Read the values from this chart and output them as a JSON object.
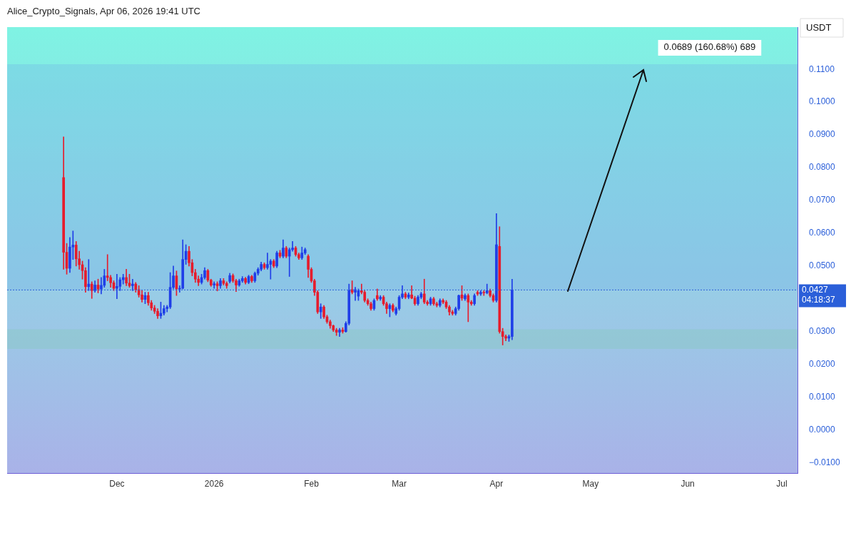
{
  "chart_data": {
    "type": "candlestick",
    "ylabel": "USDT",
    "annotations": [
      "Alice_Crypto_Signals, Apr 06, 2026 19:41 UTC",
      {
        "text": "0.0689 (160.68%) 689",
        "x": "2026-06-08",
        "y": 0.1116
      }
    ],
    "x": [
      "2025-11-14",
      "2025-11-15",
      "2025-11-16",
      "2025-11-17",
      "2025-11-18",
      "2025-11-19",
      "2025-11-20",
      "2025-11-21",
      "2025-11-22",
      "2025-11-23",
      "2025-11-24",
      "2025-11-25",
      "2025-11-26",
      "2025-11-27",
      "2025-11-28",
      "2025-11-29",
      "2025-11-30",
      "2025-12-01",
      "2025-12-02",
      "2025-12-03",
      "2025-12-04",
      "2025-12-05",
      "2025-12-06",
      "2025-12-07",
      "2025-12-08",
      "2025-12-09",
      "2025-12-10",
      "2025-12-11",
      "2025-12-12",
      "2025-12-13",
      "2025-12-14",
      "2025-12-15",
      "2025-12-16",
      "2025-12-17",
      "2025-12-18",
      "2025-12-19",
      "2025-12-20",
      "2025-12-21",
      "2025-12-22",
      "2025-12-23",
      "2025-12-24",
      "2025-12-25",
      "2025-12-26",
      "2025-12-27",
      "2025-12-28",
      "2025-12-29",
      "2025-12-30",
      "2025-12-31",
      "2026-01-01",
      "2026-01-02",
      "2026-01-03",
      "2026-01-04",
      "2026-01-05",
      "2026-01-06",
      "2026-01-07",
      "2026-01-08",
      "2026-01-09",
      "2026-01-10",
      "2026-01-11",
      "2026-01-12",
      "2026-01-13",
      "2026-01-14",
      "2026-01-15",
      "2026-01-16",
      "2026-01-17",
      "2026-01-18",
      "2026-01-19",
      "2026-01-20",
      "2026-01-21",
      "2026-01-22",
      "2026-01-23",
      "2026-01-24",
      "2026-01-25",
      "2026-01-26",
      "2026-01-27",
      "2026-01-28",
      "2026-01-29",
      "2026-01-30",
      "2026-01-31",
      "2026-02-01",
      "2026-02-02",
      "2026-02-03",
      "2026-02-04",
      "2026-02-05",
      "2026-02-06",
      "2026-02-07",
      "2026-02-08",
      "2026-02-09",
      "2026-02-10",
      "2026-02-11",
      "2026-02-12",
      "2026-02-13",
      "2026-02-14",
      "2026-02-15",
      "2026-02-16",
      "2026-02-17",
      "2026-02-18",
      "2026-02-19",
      "2026-02-20",
      "2026-02-21",
      "2026-02-22",
      "2026-02-23",
      "2026-02-24",
      "2026-02-25",
      "2026-02-26",
      "2026-02-27",
      "2026-02-28",
      "2026-03-01",
      "2026-03-02",
      "2026-03-03",
      "2026-03-04",
      "2026-03-05",
      "2026-03-06",
      "2026-03-07",
      "2026-03-08",
      "2026-03-09",
      "2026-03-10",
      "2026-03-11",
      "2026-03-12",
      "2026-03-13",
      "2026-03-14",
      "2026-03-15",
      "2026-03-16",
      "2026-03-17",
      "2026-03-18",
      "2026-03-19",
      "2026-03-20",
      "2026-03-21",
      "2026-03-22",
      "2026-03-23",
      "2026-03-24",
      "2026-03-25",
      "2026-03-26",
      "2026-03-27",
      "2026-03-28",
      "2026-03-29",
      "2026-03-30",
      "2026-03-31",
      "2026-04-01",
      "2026-04-02",
      "2026-04-03",
      "2026-04-04",
      "2026-04-05",
      "2026-04-06"
    ],
    "ohlc": [
      [
        0.077,
        0.0894,
        0.049,
        0.0542
      ],
      [
        0.0542,
        0.0569,
        0.0475,
        0.0493
      ],
      [
        0.0493,
        0.0587,
        0.048,
        0.0558
      ],
      [
        0.0558,
        0.0607,
        0.052,
        0.0564
      ],
      [
        0.0564,
        0.0575,
        0.05,
        0.0522
      ],
      [
        0.0522,
        0.0545,
        0.049,
        0.0504
      ],
      [
        0.0504,
        0.0515,
        0.046,
        0.0486
      ],
      [
        0.0486,
        0.0495,
        0.042,
        0.0437
      ],
      [
        0.0437,
        0.052,
        0.0425,
        0.0445
      ],
      [
        0.0445,
        0.0452,
        0.0401,
        0.0425
      ],
      [
        0.0425,
        0.0455,
        0.042,
        0.0442
      ],
      [
        0.0442,
        0.046,
        0.0418,
        0.043
      ],
      [
        0.043,
        0.0465,
        0.0415,
        0.0441
      ],
      [
        0.0441,
        0.049,
        0.0435,
        0.047
      ],
      [
        0.047,
        0.0535,
        0.0455,
        0.0465
      ],
      [
        0.0465,
        0.0472,
        0.0435,
        0.0449
      ],
      [
        0.0449,
        0.0455,
        0.0425,
        0.0432
      ],
      [
        0.0432,
        0.0475,
        0.04,
        0.0438
      ],
      [
        0.0438,
        0.0465,
        0.0425,
        0.0458
      ],
      [
        0.0458,
        0.0475,
        0.0445,
        0.0465
      ],
      [
        0.0465,
        0.049,
        0.044,
        0.0448
      ],
      [
        0.0448,
        0.0475,
        0.0435,
        0.044
      ],
      [
        0.044,
        0.046,
        0.0425,
        0.0445
      ],
      [
        0.0445,
        0.045,
        0.042,
        0.0428
      ],
      [
        0.0428,
        0.044,
        0.0405,
        0.0412
      ],
      [
        0.0412,
        0.0425,
        0.039,
        0.0398
      ],
      [
        0.0398,
        0.042,
        0.0385,
        0.041
      ],
      [
        0.041,
        0.042,
        0.038,
        0.0388
      ],
      [
        0.0388,
        0.0395,
        0.0365,
        0.0372
      ],
      [
        0.0372,
        0.038,
        0.0355,
        0.0362
      ],
      [
        0.0362,
        0.037,
        0.034,
        0.0348
      ],
      [
        0.0348,
        0.039,
        0.034,
        0.0356
      ],
      [
        0.0356,
        0.038,
        0.035,
        0.037
      ],
      [
        0.037,
        0.038,
        0.036,
        0.0375
      ],
      [
        0.0375,
        0.048,
        0.037,
        0.0435
      ],
      [
        0.0435,
        0.05,
        0.043,
        0.047
      ],
      [
        0.047,
        0.0485,
        0.041,
        0.043
      ],
      [
        0.043,
        0.044,
        0.042,
        0.0432
      ],
      [
        0.0432,
        0.058,
        0.043,
        0.052
      ],
      [
        0.052,
        0.0565,
        0.0505,
        0.0545
      ],
      [
        0.0545,
        0.056,
        0.05,
        0.051
      ],
      [
        0.051,
        0.052,
        0.047,
        0.048
      ],
      [
        0.048,
        0.049,
        0.045,
        0.046
      ],
      [
        0.046,
        0.047,
        0.044,
        0.045
      ],
      [
        0.045,
        0.0475,
        0.0445,
        0.0465
      ],
      [
        0.0465,
        0.0495,
        0.046,
        0.0486
      ],
      [
        0.0486,
        0.049,
        0.0452,
        0.0457
      ],
      [
        0.0457,
        0.046,
        0.0438,
        0.0442
      ],
      [
        0.0442,
        0.0452,
        0.0432,
        0.0446
      ],
      [
        0.0446,
        0.0452,
        0.0424,
        0.044
      ],
      [
        0.044,
        0.0462,
        0.0432,
        0.0455
      ],
      [
        0.0455,
        0.0462,
        0.0442,
        0.0447
      ],
      [
        0.0447,
        0.0452,
        0.0432,
        0.044
      ],
      [
        0.0453,
        0.0478,
        0.0448,
        0.0471
      ],
      [
        0.0471,
        0.0476,
        0.045,
        0.0455
      ],
      [
        0.0455,
        0.046,
        0.0422,
        0.0442
      ],
      [
        0.0442,
        0.046,
        0.0438,
        0.0455
      ],
      [
        0.0455,
        0.0468,
        0.045,
        0.0462
      ],
      [
        0.0462,
        0.0466,
        0.0445,
        0.045
      ],
      [
        0.045,
        0.0472,
        0.0446,
        0.0468
      ],
      [
        0.0468,
        0.0472,
        0.045,
        0.0455
      ],
      [
        0.0455,
        0.0482,
        0.045,
        0.0478
      ],
      [
        0.0478,
        0.0495,
        0.0472,
        0.049
      ],
      [
        0.049,
        0.0512,
        0.0485,
        0.0505
      ],
      [
        0.0505,
        0.051,
        0.049,
        0.0495
      ],
      [
        0.0495,
        0.054,
        0.049,
        0.0505
      ],
      [
        0.0505,
        0.052,
        0.046,
        0.0515
      ],
      [
        0.0515,
        0.052,
        0.0495,
        0.05
      ],
      [
        0.05,
        0.0545,
        0.0495,
        0.054
      ],
      [
        0.054,
        0.0548,
        0.0525,
        0.053
      ],
      [
        0.053,
        0.058,
        0.0525,
        0.0555
      ],
      [
        0.0555,
        0.056,
        0.0525,
        0.053
      ],
      [
        0.053,
        0.0555,
        0.0468,
        0.055
      ],
      [
        0.055,
        0.0575,
        0.0545,
        0.0555
      ],
      [
        0.0555,
        0.056,
        0.053,
        0.0535
      ],
      [
        0.0535,
        0.054,
        0.052,
        0.0525
      ],
      [
        0.0525,
        0.0558,
        0.052,
        0.054
      ],
      [
        0.054,
        0.0555,
        0.0535,
        0.055
      ],
      [
        0.053,
        0.0535,
        0.0465,
        0.049
      ],
      [
        0.049,
        0.0495,
        0.045,
        0.0455
      ],
      [
        0.0455,
        0.046,
        0.041,
        0.042
      ],
      [
        0.042,
        0.0425,
        0.0355,
        0.036
      ],
      [
        0.036,
        0.0385,
        0.034,
        0.0375
      ],
      [
        0.0375,
        0.038,
        0.034,
        0.0345
      ],
      [
        0.0345,
        0.035,
        0.0325,
        0.033
      ],
      [
        0.033,
        0.0335,
        0.031,
        0.0318
      ],
      [
        0.0318,
        0.032,
        0.03,
        0.0305
      ],
      [
        0.0305,
        0.031,
        0.0288,
        0.0298
      ],
      [
        0.0298,
        0.031,
        0.0285,
        0.0305
      ],
      [
        0.0305,
        0.0312,
        0.0295,
        0.03
      ],
      [
        0.03,
        0.033,
        0.0298,
        0.0325
      ],
      [
        0.0325,
        0.0445,
        0.032,
        0.0425
      ],
      [
        0.0428,
        0.0455,
        0.0415,
        0.042
      ],
      [
        0.042,
        0.0435,
        0.0395,
        0.0428
      ],
      [
        0.0408,
        0.043,
        0.0395,
        0.0425
      ],
      [
        0.0425,
        0.0445,
        0.0415,
        0.042
      ],
      [
        0.042,
        0.0425,
        0.039,
        0.0395
      ],
      [
        0.0395,
        0.04,
        0.038,
        0.0385
      ],
      [
        0.0385,
        0.039,
        0.0365,
        0.037
      ],
      [
        0.037,
        0.04,
        0.0365,
        0.0395
      ],
      [
        0.041,
        0.043,
        0.0395,
        0.04
      ],
      [
        0.04,
        0.041,
        0.0395,
        0.0405
      ],
      [
        0.0405,
        0.041,
        0.038,
        0.0385
      ],
      [
        0.0385,
        0.039,
        0.0355,
        0.037
      ],
      [
        0.037,
        0.0385,
        0.0345,
        0.038
      ],
      [
        0.038,
        0.0385,
        0.036,
        0.0365
      ],
      [
        0.0355,
        0.0375,
        0.035,
        0.037
      ],
      [
        0.037,
        0.041,
        0.0365,
        0.0405
      ],
      [
        0.0405,
        0.044,
        0.04,
        0.0415
      ],
      [
        0.0415,
        0.042,
        0.04,
        0.0405
      ],
      [
        0.0405,
        0.0418,
        0.04,
        0.0412
      ],
      [
        0.0412,
        0.044,
        0.04,
        0.0402
      ],
      [
        0.0402,
        0.0408,
        0.038,
        0.0385
      ],
      [
        0.0385,
        0.041,
        0.038,
        0.0405
      ],
      [
        0.0405,
        0.042,
        0.04,
        0.0415
      ],
      [
        0.0415,
        0.046,
        0.0385,
        0.039
      ],
      [
        0.039,
        0.0395,
        0.038,
        0.0385
      ],
      [
        0.0385,
        0.0405,
        0.038,
        0.04
      ],
      [
        0.04,
        0.0405,
        0.038,
        0.0385
      ],
      [
        0.0385,
        0.039,
        0.0375,
        0.038
      ],
      [
        0.038,
        0.04,
        0.0375,
        0.0395
      ],
      [
        0.0395,
        0.04,
        0.0385,
        0.039
      ],
      [
        0.039,
        0.0395,
        0.037,
        0.0375
      ],
      [
        0.0375,
        0.038,
        0.035,
        0.036
      ],
      [
        0.036,
        0.0365,
        0.035,
        0.0355
      ],
      [
        0.0355,
        0.0375,
        0.035,
        0.037
      ],
      [
        0.037,
        0.0412,
        0.0365,
        0.041
      ],
      [
        0.0412,
        0.044,
        0.0395,
        0.0402
      ],
      [
        0.04,
        0.0415,
        0.0395,
        0.041
      ],
      [
        0.041,
        0.0415,
        0.033,
        0.039
      ],
      [
        0.039,
        0.0395,
        0.038,
        0.0385
      ],
      [
        0.0385,
        0.0415,
        0.038,
        0.041
      ],
      [
        0.042,
        0.0425,
        0.041,
        0.0415
      ],
      [
        0.0415,
        0.0425,
        0.041,
        0.042
      ],
      [
        0.042,
        0.0425,
        0.041,
        0.0418
      ],
      [
        0.0418,
        0.0445,
        0.0415,
        0.0425
      ],
      [
        0.0425,
        0.043,
        0.0405,
        0.041
      ],
      [
        0.041,
        0.0415,
        0.039,
        0.0395
      ],
      [
        0.0395,
        0.066,
        0.039,
        0.0565
      ],
      [
        0.056,
        0.062,
        0.0295,
        0.03
      ],
      [
        0.03,
        0.031,
        0.0259,
        0.0285
      ],
      [
        0.0285,
        0.029,
        0.0272,
        0.028
      ],
      [
        0.028,
        0.029,
        0.027,
        0.0285
      ],
      [
        0.0285,
        0.046,
        0.0275,
        0.0427
      ]
    ],
    "xlim": [
      "2025-10-27",
      "2026-07-06"
    ],
    "xticks": [
      {
        "value": "2025-12-01",
        "label": "Dec"
      },
      {
        "value": "2026-01-01",
        "label": "2026"
      },
      {
        "value": "2026-02-01",
        "label": "Feb"
      },
      {
        "value": "2026-03-01",
        "label": "Mar"
      },
      {
        "value": "2026-04-01",
        "label": "Apr"
      },
      {
        "value": "2026-05-01",
        "label": "May"
      },
      {
        "value": "2026-06-01",
        "label": "Jun"
      },
      {
        "value": "2026-07-01",
        "label": "Jul"
      }
    ],
    "ylim": [
      -0.0133,
      0.1229
    ],
    "yticks": [
      {
        "value": -0.01,
        "label": "−0.0100"
      },
      {
        "value": 0,
        "label": "0.0000"
      },
      {
        "value": 0.01,
        "label": "0.0100"
      },
      {
        "value": 0.02,
        "label": "0.0200"
      },
      {
        "value": 0.03,
        "label": "0.0300"
      },
      {
        "value": 0.05,
        "label": "0.0500"
      },
      {
        "value": 0.06,
        "label": "0.0600"
      },
      {
        "value": 0.07,
        "label": "0.0700"
      },
      {
        "value": 0.08,
        "label": "0.0800"
      },
      {
        "value": 0.09,
        "label": "0.0900"
      },
      {
        "value": 0.1,
        "label": "0.1000"
      },
      {
        "value": 0.11,
        "label": "0.1100"
      }
    ],
    "ref_lines": [
      {
        "axis": "y",
        "value": 0.0427,
        "label": "0.0427 04:18:37",
        "color": "#2b5fd9",
        "line_style": "dotted"
      }
    ],
    "bands": [
      {
        "axis": "y",
        "from": 0.0247,
        "to": 0.0307,
        "color": "#7fc9b0"
      },
      {
        "axis": "y",
        "from": 0.0427,
        "to": 0.1116,
        "color": "#6fb0e8"
      }
    ]
  }
}
